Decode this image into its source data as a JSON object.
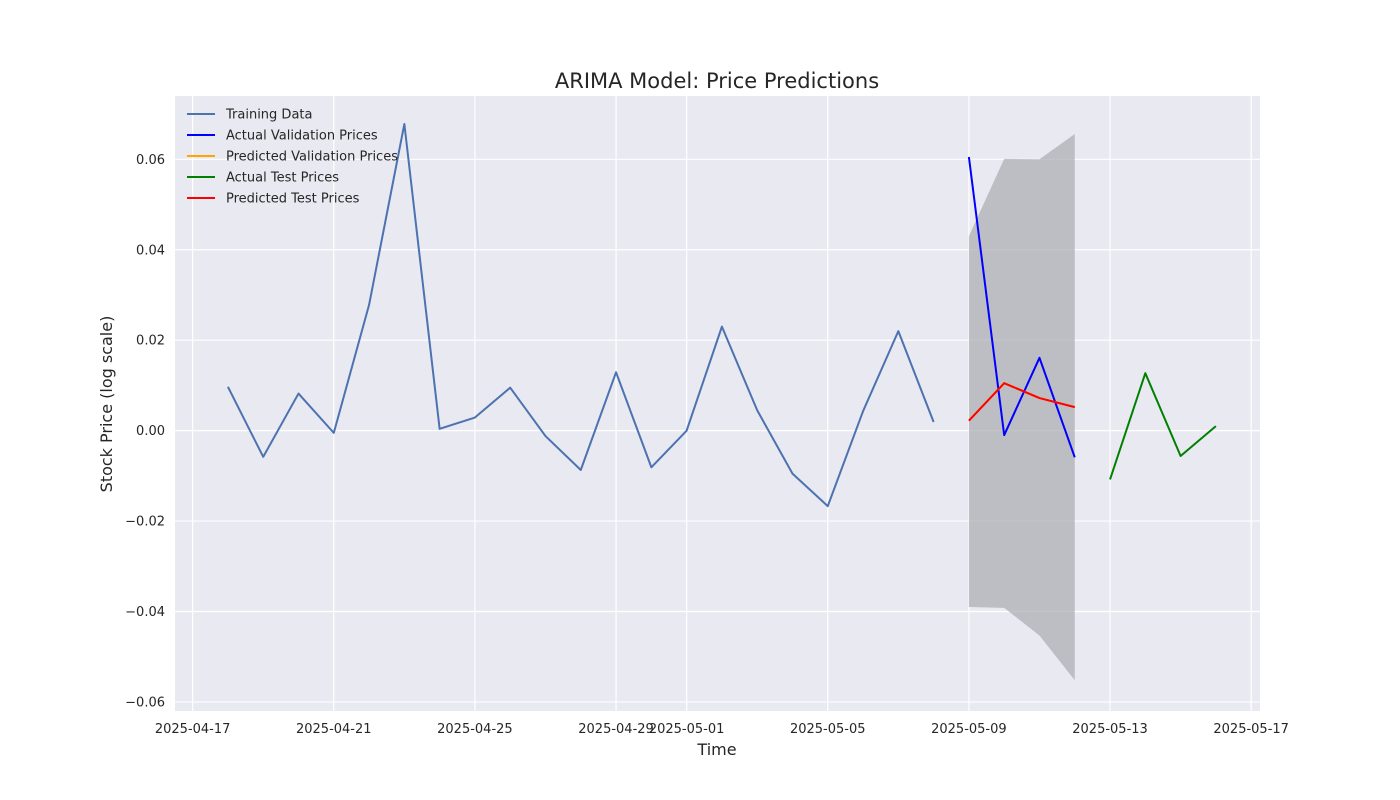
{
  "chart_data": {
    "type": "line",
    "title": "ARIMA Model: Price Predictions",
    "xlabel": "Time",
    "ylabel": "Stock Price (log scale)",
    "xlim": [
      "2025-04-16T12:00",
      "2025-05-17T06:00"
    ],
    "ylim": [
      -0.062,
      0.074
    ],
    "x_ticks": [
      "2025-04-17",
      "2025-04-21",
      "2025-04-25",
      "2025-04-29",
      "2025-05-01",
      "2025-05-05",
      "2025-05-09",
      "2025-05-13",
      "2025-05-17"
    ],
    "y_ticks": [
      -0.06,
      -0.04,
      -0.02,
      0.0,
      0.02,
      0.04,
      0.06
    ],
    "y_tick_labels": [
      "−0.06",
      "−0.04",
      "−0.02",
      "0.00",
      "0.02",
      "0.04",
      "0.06"
    ],
    "grid": true,
    "background": "#e9e9f1",
    "legend_position": "top-left",
    "series": [
      {
        "name": "Training Data",
        "color": "#4c72b0",
        "points": [
          [
            "2025-04-18",
            0.0097
          ],
          [
            "2025-04-19",
            -0.0058
          ],
          [
            "2025-04-20",
            0.0082
          ],
          [
            "2025-04-21",
            -0.0005
          ],
          [
            "2025-04-22",
            0.0278
          ],
          [
            "2025-04-23",
            0.0678
          ],
          [
            "2025-04-24",
            0.0004
          ],
          [
            "2025-04-25",
            0.0029
          ],
          [
            "2025-04-26",
            0.0095
          ],
          [
            "2025-04-27",
            -0.0012
          ],
          [
            "2025-04-28",
            -0.0087
          ],
          [
            "2025-04-29",
            0.0129
          ],
          [
            "2025-04-30",
            -0.0081
          ],
          [
            "2025-05-01",
            0.0
          ],
          [
            "2025-05-02",
            0.023
          ],
          [
            "2025-05-03",
            0.0045
          ],
          [
            "2025-05-04",
            -0.0095
          ],
          [
            "2025-05-05",
            -0.0167
          ],
          [
            "2025-05-06",
            0.0043
          ],
          [
            "2025-05-07",
            0.022
          ],
          [
            "2025-05-08",
            0.0019
          ]
        ]
      },
      {
        "name": "Actual Validation Prices",
        "color": "#0000ff",
        "points": [
          [
            "2025-05-09",
            0.0605
          ],
          [
            "2025-05-10",
            -0.001
          ],
          [
            "2025-05-11",
            0.0161
          ],
          [
            "2025-05-12",
            -0.0059
          ]
        ]
      },
      {
        "name": "Predicted Validation Prices",
        "color": "#ffa500",
        "points": [
          [
            "2025-05-09",
            0.0022
          ],
          [
            "2025-05-10",
            0.0105
          ],
          [
            "2025-05-11",
            0.0072
          ],
          [
            "2025-05-12",
            0.0052
          ]
        ]
      },
      {
        "name": "Actual Test Prices",
        "color": "#008000",
        "points": [
          [
            "2025-05-13",
            -0.0108
          ],
          [
            "2025-05-14",
            0.0127
          ],
          [
            "2025-05-15",
            -0.0056
          ],
          [
            "2025-05-16",
            0.001
          ]
        ]
      },
      {
        "name": "Predicted Test Prices",
        "color": "#ff0000",
        "points": [
          [
            "2025-05-09",
            0.0022
          ],
          [
            "2025-05-10",
            0.0105
          ],
          [
            "2025-05-11",
            0.0072
          ],
          [
            "2025-05-12",
            0.0052
          ]
        ]
      }
    ],
    "confidence_band": {
      "color": "#a9a9b0",
      "x": [
        "2025-05-09",
        "2025-05-10",
        "2025-05-11",
        "2025-05-12"
      ],
      "lower": [
        -0.039,
        -0.0392,
        -0.0453,
        -0.0552
      ],
      "upper": [
        0.043,
        0.0601,
        0.06,
        0.0656
      ]
    }
  }
}
